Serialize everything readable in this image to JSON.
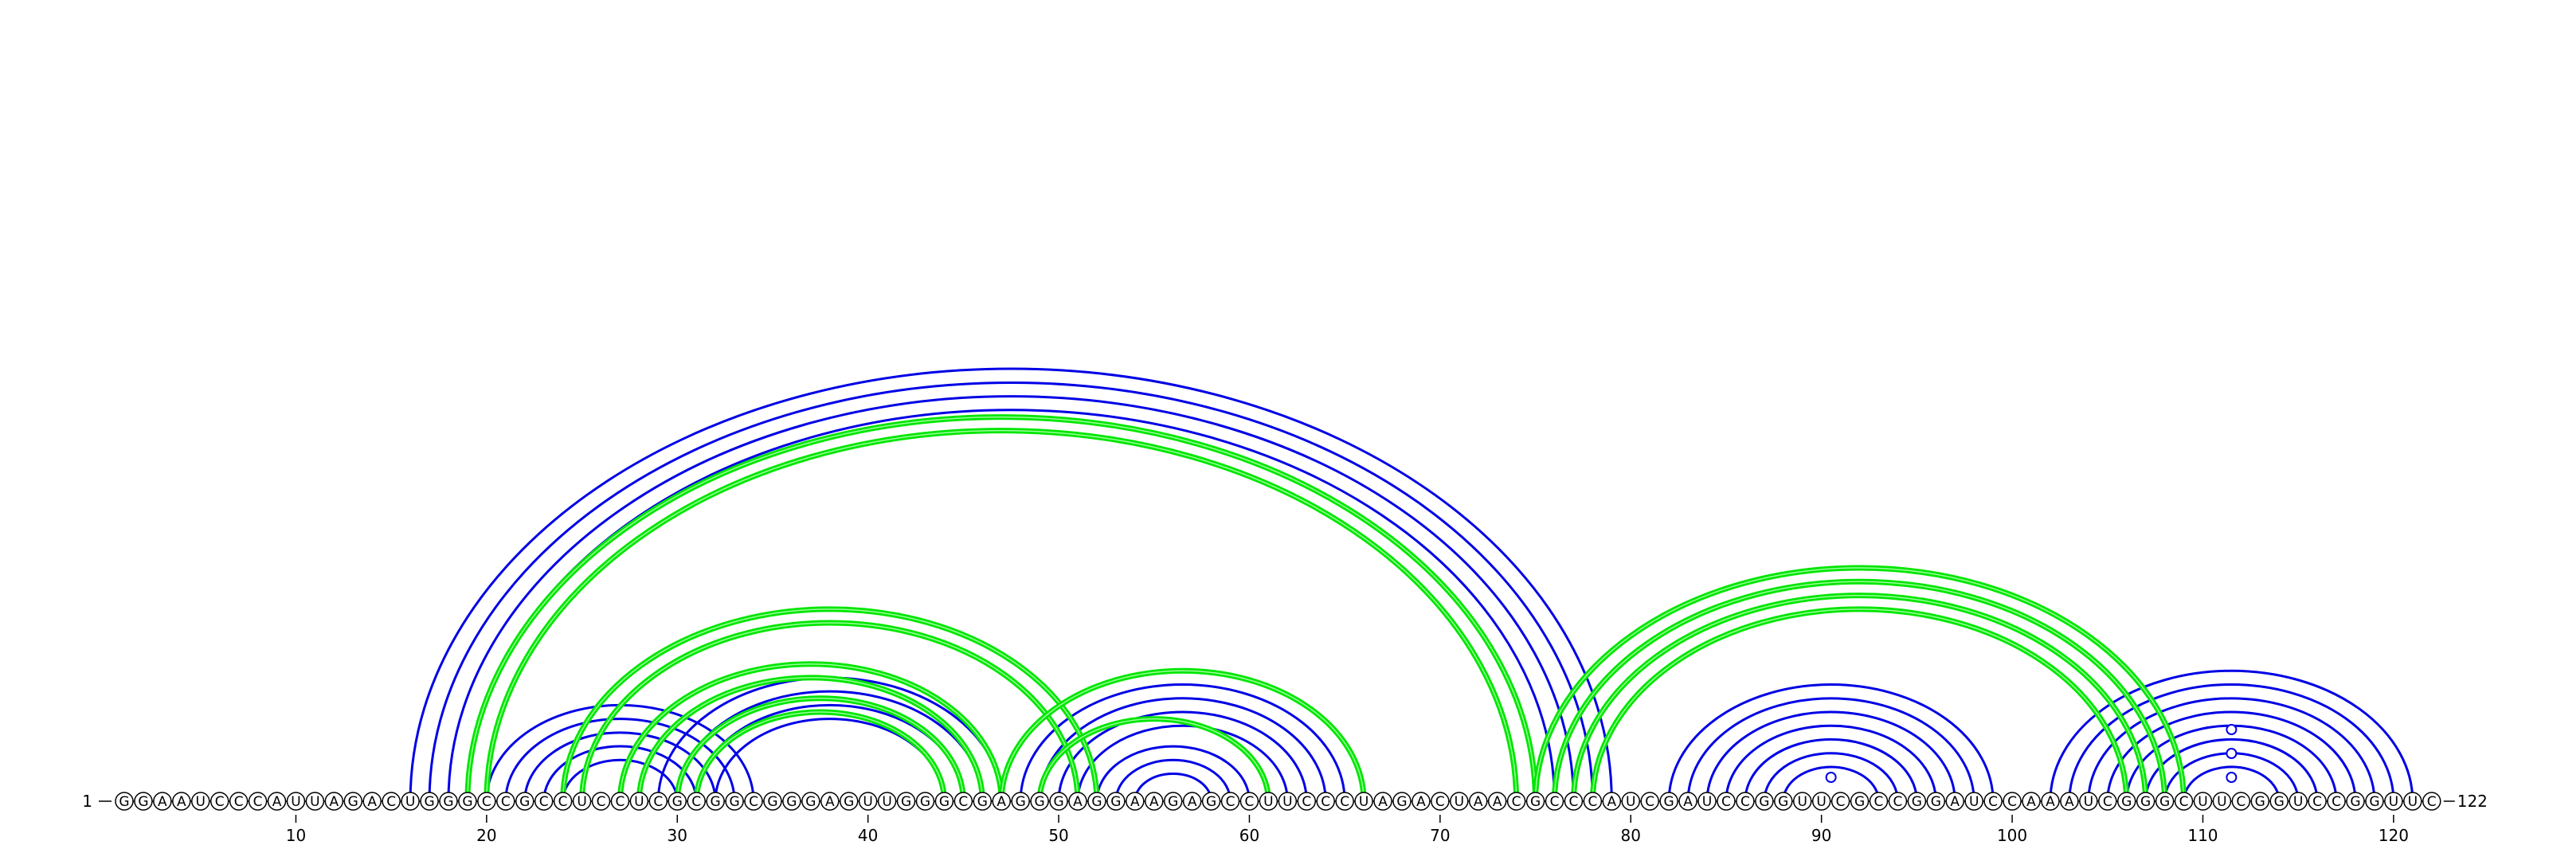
{
  "diagram": {
    "sequence": "GGAAUCCCAUUAGACUGGGCCGCCUCCUCGCGGCGGGAGUUGGGCGAGGGAGGAAGAGCCUUCCCUAGACUAACGCCCAUCGAUCCGGUUCGCCGGAUCCAAAUCGGGCUUCGGUCCGGUUC",
    "start_label": "1",
    "end_label": "122",
    "ticks": [
      "10",
      "20",
      "30",
      "40",
      "50",
      "60",
      "70",
      "80",
      "90",
      "100",
      "110",
      "120"
    ],
    "colors": {
      "blue_arc": "#0000e6",
      "green_arc": "#00e600",
      "nucleotide_border": "#000000",
      "text": "#000000"
    },
    "blue_pairs": [
      [
        16,
        79
      ],
      [
        17,
        78
      ],
      [
        18,
        77
      ],
      [
        19,
        76
      ],
      [
        20,
        34
      ],
      [
        21,
        33
      ],
      [
        22,
        32
      ],
      [
        23,
        31
      ],
      [
        24,
        30
      ],
      [
        29,
        47
      ],
      [
        30,
        46
      ],
      [
        31,
        45
      ],
      [
        32,
        44
      ],
      [
        48,
        65
      ],
      [
        49,
        64
      ],
      [
        50,
        63
      ],
      [
        51,
        62
      ],
      [
        52,
        60
      ],
      [
        53,
        59
      ],
      [
        54,
        58
      ],
      [
        82,
        99
      ],
      [
        83,
        98
      ],
      [
        84,
        97
      ],
      [
        85,
        96
      ],
      [
        86,
        95
      ],
      [
        87,
        94
      ],
      [
        88,
        93
      ],
      [
        102,
        121
      ],
      [
        103,
        120
      ],
      [
        104,
        119
      ],
      [
        105,
        118
      ],
      [
        106,
        117
      ],
      [
        107,
        116
      ],
      [
        108,
        115
      ],
      [
        109,
        114
      ]
    ],
    "green_pairs": [
      [
        19,
        75
      ],
      [
        20,
        74
      ],
      [
        24,
        52
      ],
      [
        25,
        51
      ],
      [
        27,
        47
      ],
      [
        28,
        46
      ],
      [
        30,
        45
      ],
      [
        31,
        44
      ],
      [
        47,
        66
      ],
      [
        49,
        61
      ],
      [
        75,
        109
      ],
      [
        76,
        108
      ],
      [
        77,
        107
      ],
      [
        78,
        106
      ]
    ],
    "loop_markers": [
      90,
      111
    ]
  }
}
